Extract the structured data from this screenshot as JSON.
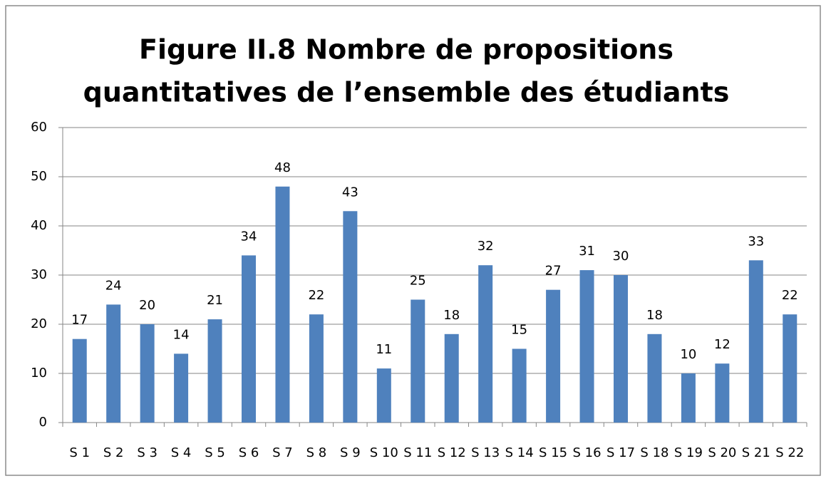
{
  "chart_data": {
    "type": "bar",
    "title": [
      "Figure II.8 Nombre de propositions",
      "quantitatives de l’ensemble des étudiants"
    ],
    "categories": [
      "S 1",
      "S 2",
      "S 3",
      "S 4",
      "S 5",
      "S 6",
      "S 7",
      "S 8",
      "S 9",
      "S 10",
      "S 11",
      "S 12",
      "S 13",
      "S 14",
      "S 15",
      "S 16",
      "S 17",
      "S 18",
      "S 19",
      "S 20",
      "S 21",
      "S 22"
    ],
    "values": [
      17,
      24,
      20,
      14,
      21,
      34,
      48,
      22,
      43,
      11,
      25,
      18,
      32,
      15,
      27,
      31,
      30,
      18,
      10,
      12,
      33,
      22
    ],
    "color": "#4f81bd",
    "ylim": [
      0,
      60
    ],
    "yticks": [
      0,
      10,
      20,
      30,
      40,
      50,
      60
    ],
    "grid": true
  }
}
